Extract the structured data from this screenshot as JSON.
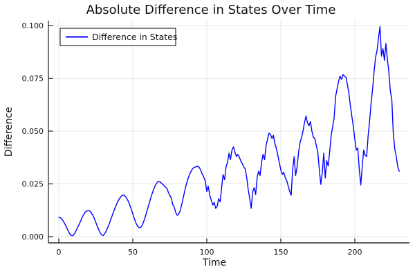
{
  "title": "Absolute Difference in States Over Time",
  "legend": {
    "label": "Difference in States"
  },
  "axes": {
    "xlabel": "Time",
    "ylabel": "Difference",
    "x_tick_values": [
      0,
      50,
      100,
      150,
      200
    ],
    "x_tick_labels": [
      "0",
      "50",
      "100",
      "150",
      "200"
    ],
    "y_tick_values": [
      0,
      0.025,
      0.05,
      0.075,
      0.1
    ],
    "y_tick_labels": [
      "0.000",
      "0.025",
      "0.050",
      "0.075",
      "0.100"
    ]
  },
  "colors": {
    "line": "#0000ff",
    "grid": "#e4e4e4",
    "spine": "#2a2a2a",
    "text": "#111111",
    "background": "#ffffff",
    "legend_border": "#000000",
    "legend_fill": "#ffffff"
  },
  "chart_data": {
    "type": "line",
    "title": "Absolute Difference in States Over Time",
    "xlabel": "Time",
    "ylabel": "Difference",
    "xlim": [
      -7,
      237
    ],
    "ylim": [
      -0.003,
      0.103
    ],
    "grid": true,
    "legend_position": "top-left",
    "x_start": 0,
    "x_step": 1,
    "series": [
      {
        "name": "Difference in States",
        "color": "#0000ff",
        "values": [
          0.0092,
          0.009,
          0.0084,
          0.0074,
          0.0061,
          0.0048,
          0.0033,
          0.0019,
          0.0008,
          0.0004,
          0.0008,
          0.0019,
          0.0033,
          0.0048,
          0.0062,
          0.0078,
          0.0094,
          0.0107,
          0.0117,
          0.0122,
          0.0124,
          0.0121,
          0.0113,
          0.0101,
          0.0086,
          0.0068,
          0.005,
          0.0033,
          0.0018,
          0.0008,
          0.0006,
          0.0014,
          0.0026,
          0.0042,
          0.006,
          0.0079,
          0.0098,
          0.0118,
          0.0136,
          0.0153,
          0.0168,
          0.018,
          0.019,
          0.0196,
          0.0196,
          0.0191,
          0.0181,
          0.0167,
          0.0149,
          0.0129,
          0.0108,
          0.0087,
          0.0067,
          0.0052,
          0.0044,
          0.0042,
          0.0049,
          0.0065,
          0.0085,
          0.0108,
          0.0132,
          0.0156,
          0.018,
          0.0203,
          0.0223,
          0.024,
          0.0252,
          0.0261,
          0.026,
          0.0256,
          0.0249,
          0.0243,
          0.0235,
          0.023,
          0.021,
          0.0196,
          0.0183,
          0.0152,
          0.014,
          0.0114,
          0.0101,
          0.0107,
          0.0124,
          0.015,
          0.0182,
          0.0214,
          0.0243,
          0.0268,
          0.0288,
          0.0305,
          0.0318,
          0.0326,
          0.033,
          0.0331,
          0.0334,
          0.0327,
          0.0313,
          0.0295,
          0.0281,
          0.0262,
          0.0214,
          0.0239,
          0.0196,
          0.0173,
          0.015,
          0.0162,
          0.0134,
          0.0143,
          0.018,
          0.0165,
          0.0232,
          0.0294,
          0.027,
          0.033,
          0.0353,
          0.0395,
          0.0365,
          0.041,
          0.0425,
          0.04,
          0.038,
          0.039,
          0.0376,
          0.0358,
          0.0345,
          0.033,
          0.032,
          0.0278,
          0.0222,
          0.018,
          0.0134,
          0.0212,
          0.0232,
          0.0199,
          0.0281,
          0.031,
          0.029,
          0.0353,
          0.039,
          0.0365,
          0.043,
          0.046,
          0.049,
          0.0485,
          0.0465,
          0.048,
          0.044,
          0.0418,
          0.0385,
          0.035,
          0.0315,
          0.0295,
          0.0305,
          0.028,
          0.0265,
          0.024,
          0.0215,
          0.0196,
          0.032,
          0.0379,
          0.029,
          0.033,
          0.04,
          0.0445,
          0.047,
          0.05,
          0.054,
          0.0572,
          0.054,
          0.0525,
          0.0545,
          0.05,
          0.047,
          0.0465,
          0.043,
          0.04,
          0.032,
          0.0248,
          0.03,
          0.0395,
          0.0278,
          0.036,
          0.0335,
          0.04,
          0.0477,
          0.052,
          0.056,
          0.0663,
          0.07,
          0.0735,
          0.076,
          0.0745,
          0.0768,
          0.076,
          0.0755,
          0.072,
          0.068,
          0.062,
          0.057,
          0.052,
          0.046,
          0.041,
          0.042,
          0.032,
          0.0245,
          0.033,
          0.041,
          0.0385,
          0.038,
          0.048,
          0.055,
          0.063,
          0.07,
          0.078,
          0.085,
          0.088,
          0.094,
          0.0995,
          0.0855,
          0.089,
          0.0835,
          0.0915,
          0.084,
          0.078,
          0.069,
          0.0647,
          0.049,
          0.0415,
          0.038,
          0.033,
          0.031
        ]
      }
    ]
  }
}
